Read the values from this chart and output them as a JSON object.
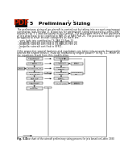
{
  "title": "5   Preliminary Sizing",
  "page_number": "5 - 1",
  "background_color": "#ffffff",
  "body_text": [
    "The preliminary sizing of an aircraft is carried out by taking into account requirements and",
    "constraints (see Section 1). A process for preliminary sizing proposed by Loftin 1980 is",
    "shown in Fig. 5.1 and discussed in this section. The procedure refers to the preliminary sizing",
    "of jets that have to be certified to FAR 25 or NAS Part 25. The procedure could in general also",
    "be applied to other aircraft categories as there are:"
  ],
  "bullets": [
    "very light jets certified to CS-/JAR-25 Part 23",
    "propeller aircraft certified to CS-/JAR-25 Part 23",
    "propeller aircraft certified to CS-/JAR-25 Part 25",
    "propeller aircraft certified to VFR-1.",
    "…"
  ],
  "para2": [
    "if the respective special features and regulations are taken into account. For propeller-type",
    "aircraft the engine thrust T must be replaced by engine power P in Fig. 5.1. Minor changes in",
    "the equations result from this modification."
  ],
  "fig_label": "Fig. 5.1",
  "fig_caption": "     Flow chart of the aircraft preliminary sizing process for jets based on Loftin 1980",
  "heading_color": "#000000",
  "text_color": "#222222",
  "pdf_red": "#cc2200",
  "fig_border_color": "#777777",
  "box_fill": "#e8e8e8",
  "box_edge": "#444444",
  "arrow_color": "#333333",
  "loftin_bold": "Loftin 1980"
}
